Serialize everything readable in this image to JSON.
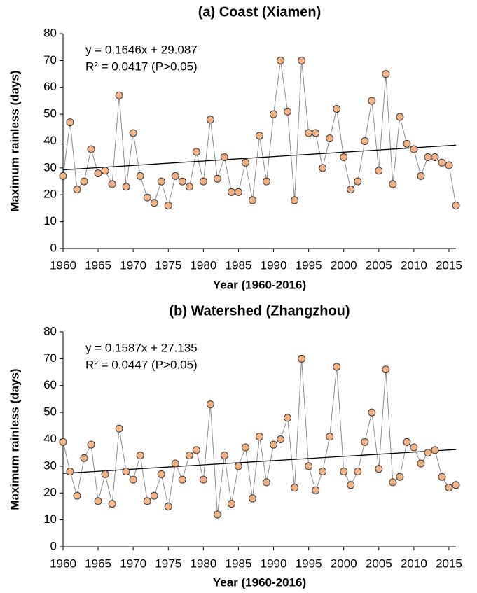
{
  "chart_data": [
    {
      "type": "line",
      "title": "(a) Coast (Xiamen)",
      "x_label": "Year (1960-2016)",
      "y_label": "Maximum rainless (days)",
      "annotations": [
        "y = 0.1646x + 29.087",
        "R² = 0.0417 (P>0.05)"
      ],
      "x": [
        1960,
        1961,
        1962,
        1963,
        1964,
        1965,
        1966,
        1967,
        1968,
        1969,
        1970,
        1971,
        1972,
        1973,
        1974,
        1975,
        1976,
        1977,
        1978,
        1979,
        1980,
        1981,
        1982,
        1983,
        1984,
        1985,
        1986,
        1987,
        1988,
        1989,
        1990,
        1991,
        1992,
        1993,
        1994,
        1995,
        1996,
        1997,
        1998,
        1999,
        2000,
        2001,
        2002,
        2003,
        2004,
        2005,
        2006,
        2007,
        2008,
        2009,
        2010,
        2011,
        2012,
        2013,
        2014,
        2015,
        2016
      ],
      "values": [
        27,
        47,
        22,
        25,
        37,
        28,
        29,
        24,
        57,
        23,
        43,
        27,
        19,
        17,
        25,
        16,
        27,
        25,
        23,
        36,
        25,
        48,
        26,
        34,
        21,
        21,
        32,
        18,
        42,
        25,
        50,
        70,
        51,
        18,
        70,
        43,
        43,
        30,
        41,
        52,
        34,
        22,
        25,
        40,
        55,
        29,
        65,
        24,
        49,
        39,
        37,
        27,
        34,
        34,
        32,
        31,
        16
      ],
      "color": "#f4b183",
      "line_color": "#8c8c8c",
      "trend": {
        "x": [
          1960,
          2016
        ],
        "values": [
          29.3,
          38.5
        ],
        "color": "#000000"
      },
      "xlim": [
        1960,
        2016
      ],
      "xticks": [
        1960,
        1965,
        1970,
        1975,
        1980,
        1985,
        1990,
        1995,
        2000,
        2005,
        2010,
        2015
      ],
      "ylim": [
        0,
        80
      ],
      "yticks": [
        0,
        10,
        20,
        30,
        40,
        50,
        60,
        70,
        80
      ],
      "grid": false
    },
    {
      "type": "line",
      "title": "(b) Watershed (Zhangzhou)",
      "x_label": "Year (1960-2016)",
      "y_label": "Maximum rainless (days)",
      "annotations": [
        "y = 0.1587x + 27.135",
        "R² = 0.0447 (P>0.05)"
      ],
      "x": [
        1960,
        1961,
        1962,
        1963,
        1964,
        1965,
        1966,
        1967,
        1968,
        1969,
        1970,
        1971,
        1972,
        1973,
        1974,
        1975,
        1976,
        1977,
        1978,
        1979,
        1980,
        1981,
        1982,
        1983,
        1984,
        1985,
        1986,
        1987,
        1988,
        1989,
        1990,
        1991,
        1992,
        1993,
        1994,
        1995,
        1996,
        1997,
        1998,
        1999,
        2000,
        2001,
        2002,
        2003,
        2004,
        2005,
        2006,
        2007,
        2008,
        2009,
        2010,
        2011,
        2012,
        2013,
        2014,
        2015,
        2016
      ],
      "values": [
        39,
        28,
        19,
        33,
        38,
        17,
        27,
        16,
        44,
        28,
        25,
        34,
        17,
        19,
        27,
        15,
        31,
        25,
        34,
        36,
        25,
        53,
        12,
        34,
        16,
        30,
        37,
        18,
        41,
        24,
        38,
        40,
        48,
        22,
        70,
        30,
        21,
        28,
        41,
        67,
        28,
        23,
        28,
        39,
        50,
        29,
        66,
        24,
        26,
        39,
        37,
        31,
        35,
        36,
        26,
        22,
        23
      ],
      "color": "#f4b183",
      "line_color": "#8c8c8c",
      "trend": {
        "x": [
          1960,
          2016
        ],
        "values": [
          27.3,
          36.2
        ],
        "color": "#000000"
      },
      "xlim": [
        1960,
        2016
      ],
      "xticks": [
        1960,
        1965,
        1970,
        1975,
        1980,
        1985,
        1990,
        1995,
        2000,
        2005,
        2010,
        2015
      ],
      "ylim": [
        0,
        80
      ],
      "yticks": [
        0,
        10,
        20,
        30,
        40,
        50,
        60,
        70,
        80
      ],
      "grid": false
    }
  ]
}
